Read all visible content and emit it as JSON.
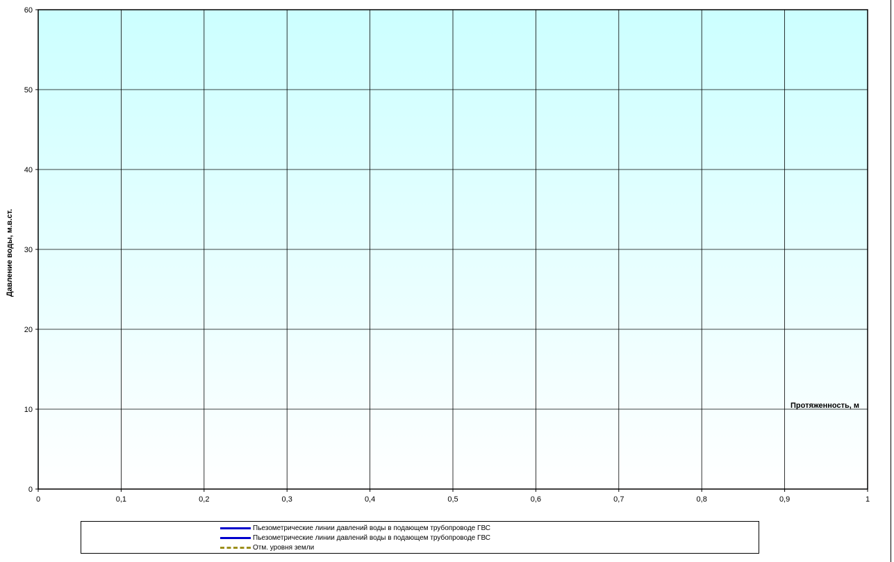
{
  "chart_data": {
    "type": "line",
    "title": "",
    "xlabel": "Протяженность, м",
    "ylabel": "Давление воды, м.в.ст.",
    "xlim": [
      0,
      1
    ],
    "ylim": [
      0,
      60
    ],
    "x_ticks": [
      "0",
      "0,1",
      "0,2",
      "0,3",
      "0,4",
      "0,5",
      "0,6",
      "0,7",
      "0,8",
      "0,9",
      "1"
    ],
    "y_ticks": [
      "0",
      "10",
      "20",
      "30",
      "40",
      "50",
      "60"
    ],
    "grid": true,
    "legend_position": "bottom",
    "series": [
      {
        "name": "Пьезометрические линии давлений воды в подающем трубопроводе ГВС",
        "values": [],
        "color": "#0000cc",
        "style": "solid"
      },
      {
        "name": "Пьезометрические линии давлений воды в подающем трубопроводе ГВС",
        "values": [],
        "color": "#0000cc",
        "style": "solid"
      },
      {
        "name": "Отм. уровня земли",
        "values": [],
        "color": "#9c8f1c",
        "style": "dashed"
      }
    ],
    "background_gradient": [
      "#ccffff",
      "#ffffff"
    ]
  }
}
